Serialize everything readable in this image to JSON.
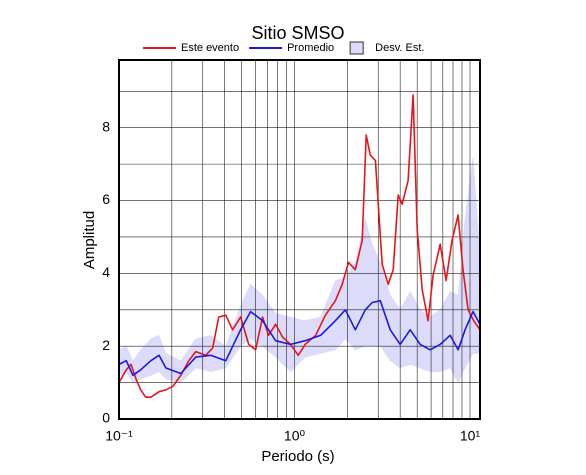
{
  "chart_data": {
    "type": "line",
    "title": "Sitio SMSO",
    "x_label": "Periodo (s)",
    "y_label": "Amplitud",
    "xlog": true,
    "xlim": [
      0.1,
      11.4
    ],
    "ylim": [
      0,
      9.86
    ],
    "xticks": [
      {
        "value": 0.1,
        "label": "10⁻¹"
      },
      {
        "value": 1,
        "label": "10⁰"
      },
      {
        "value": 10,
        "label": "10¹"
      }
    ],
    "x_minor_ticks": [
      0.2,
      0.3,
      0.4,
      0.5,
      0.6,
      0.7,
      0.8,
      0.9,
      2,
      3,
      4,
      5,
      6,
      7,
      8,
      9
    ],
    "yticks": [
      0,
      2,
      4,
      6,
      8
    ],
    "y_minor_ticks": [
      1,
      3,
      5,
      7,
      9
    ],
    "grid": true,
    "legend": "top",
    "series": [
      {
        "name": "Este evento",
        "color": "#e8141b",
        "x": [
          0.1,
          0.11,
          0.117,
          0.125,
          0.133,
          0.142,
          0.152,
          0.169,
          0.185,
          0.203,
          0.225,
          0.25,
          0.274,
          0.312,
          0.342,
          0.37,
          0.406,
          0.444,
          0.493,
          0.548,
          0.6,
          0.658,
          0.711,
          0.78,
          0.855,
          0.949,
          1.05,
          1.15,
          1.32,
          1.5,
          1.71,
          1.87,
          2.03,
          2.22,
          2.43,
          2.56,
          2.7,
          2.89,
          3.16,
          3.42,
          3.65,
          3.9,
          4.11,
          4.44,
          4.74,
          5.0,
          5.34,
          5.77,
          6.16,
          6.76,
          7.31,
          7.9,
          8.55,
          9.12,
          9.75,
          10.5,
          11.4
        ],
        "values": [
          1.0,
          1.35,
          1.5,
          1.1,
          0.8,
          0.6,
          0.6,
          0.75,
          0.8,
          0.9,
          1.2,
          1.6,
          1.85,
          1.75,
          1.95,
          2.8,
          2.85,
          2.45,
          2.8,
          2.05,
          1.9,
          2.8,
          2.3,
          2.6,
          2.25,
          2.05,
          1.75,
          2.05,
          2.3,
          2.85,
          3.25,
          3.7,
          4.3,
          4.1,
          4.9,
          7.8,
          7.25,
          7.1,
          4.25,
          3.7,
          4.1,
          6.15,
          5.9,
          6.55,
          8.9,
          5.2,
          3.55,
          2.7,
          3.95,
          4.8,
          3.8,
          4.9,
          5.6,
          4.1,
          3.0,
          2.7,
          2.45
        ]
      },
      {
        "name": "Promedio",
        "color": "#1a1adc",
        "x": [
          0.1,
          0.11,
          0.12,
          0.133,
          0.152,
          0.169,
          0.185,
          0.225,
          0.274,
          0.333,
          0.406,
          0.493,
          0.562,
          0.658,
          0.78,
          0.949,
          1.15,
          1.41,
          1.71,
          1.95,
          2.22,
          2.53,
          2.77,
          3.08,
          3.51,
          4.0,
          4.56,
          5.2,
          5.93,
          6.76,
          7.7,
          8.55,
          9.37,
          10.4,
          11.4
        ],
        "values": [
          1.5,
          1.6,
          1.2,
          1.35,
          1.6,
          1.75,
          1.4,
          1.25,
          1.7,
          1.75,
          1.6,
          2.45,
          2.95,
          2.7,
          2.15,
          2.05,
          2.15,
          2.3,
          2.7,
          3.0,
          2.45,
          3.0,
          3.2,
          3.25,
          2.45,
          2.05,
          2.45,
          2.05,
          1.9,
          2.05,
          2.3,
          1.9,
          2.45,
          2.95,
          2.6
        ]
      }
    ],
    "band": {
      "name": "Desv. Est.",
      "color": "#dcdcfa",
      "x": [
        0.1,
        0.11,
        0.12,
        0.133,
        0.152,
        0.169,
        0.185,
        0.225,
        0.274,
        0.333,
        0.406,
        0.493,
        0.562,
        0.658,
        0.78,
        0.949,
        1.15,
        1.41,
        1.71,
        1.95,
        2.22,
        2.53,
        2.77,
        3.08,
        3.51,
        4.0,
        4.56,
        5.2,
        5.93,
        6.76,
        7.7,
        8.55,
        9.37,
        10.4,
        11.4
      ],
      "lower": [
        1.2,
        1.3,
        1.0,
        1.1,
        1.2,
        1.3,
        1.1,
        1.0,
        1.4,
        1.3,
        1.4,
        2.0,
        2.2,
        2.0,
        1.7,
        1.3,
        1.7,
        1.8,
        1.9,
        2.2,
        1.9,
        2.0,
        2.0,
        2.0,
        1.6,
        1.4,
        1.5,
        1.4,
        1.3,
        1.3,
        1.4,
        1.0,
        1.4,
        1.8,
        1.8
      ],
      "upper": [
        1.9,
        2.0,
        1.6,
        1.9,
        2.2,
        2.3,
        1.8,
        1.6,
        2.2,
        2.3,
        2.0,
        3.1,
        3.7,
        3.4,
        2.9,
        2.8,
        2.7,
        2.8,
        3.8,
        3.9,
        4.3,
        5.5,
        4.8,
        4.3,
        3.4,
        3.0,
        3.5,
        3.0,
        2.8,
        3.0,
        3.5,
        3.4,
        5.5,
        7.2,
        4.5
      ]
    }
  }
}
